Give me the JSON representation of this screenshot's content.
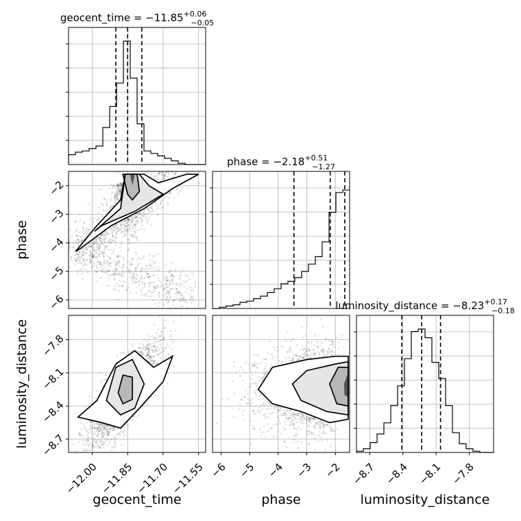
{
  "chart_data": {
    "type": "corner",
    "parameters": [
      {
        "name": "geocent_time",
        "range": [
          -12.1,
          -11.52
        ],
        "ticks": [
          -12.0,
          -11.85,
          -11.7,
          -11.55
        ],
        "tick_labels": [
          "−12.00",
          "−11.85",
          "−11.70",
          "−11.55"
        ],
        "median": -11.85,
        "q16": -11.9,
        "q84": -11.79,
        "title_main": "geocent_time = −11.85",
        "title_sup": "+0.06",
        "title_sub": "−0.05"
      },
      {
        "name": "phase",
        "range": [
          -6.3,
          -1.5
        ],
        "ticks": [
          -6,
          -5,
          -4,
          -3,
          -2
        ],
        "tick_labels": [
          "−6",
          "−5",
          "−4",
          "−3",
          "−2"
        ],
        "median": -2.18,
        "q16": -3.45,
        "q84": -1.67,
        "title_main": "phase = −2.18",
        "title_sup": "+0.51",
        "title_sub": "−1.27"
      },
      {
        "name": "luminosity_distance",
        "range": [
          -8.82,
          -7.58
        ],
        "ticks": [
          -8.7,
          -8.4,
          -8.1,
          -7.8
        ],
        "tick_labels": [
          "−8.7",
          "−8.4",
          "−8.1",
          "−7.8"
        ],
        "median": -8.23,
        "q16": -8.41,
        "q84": -8.06,
        "title_main": "luminosity_distance = −8.23",
        "title_sup": "+0.17",
        "title_sub": "−0.18"
      }
    ],
    "histograms": [
      {
        "param": "geocent_time",
        "bin_edges_start": -12.1,
        "bin_width": 0.029,
        "counts": [
          0.08,
          0.1,
          0.11,
          0.13,
          0.15,
          0.3,
          0.47,
          0.66,
          1.0,
          0.7,
          0.33,
          0.11,
          0.09,
          0.07,
          0.05,
          0.03,
          0.01,
          0.0,
          0.0,
          0.0
        ]
      },
      {
        "param": "phase",
        "bin_edges_start": -6.3,
        "bin_width": 0.24,
        "counts": [
          0.0,
          0.01,
          0.02,
          0.03,
          0.05,
          0.06,
          0.08,
          0.1,
          0.13,
          0.16,
          0.2,
          0.22,
          0.25,
          0.3,
          0.36,
          0.42,
          0.54,
          0.78,
          0.94,
          0.96
        ]
      },
      {
        "param": "luminosity_distance",
        "bin_edges_start": -8.82,
        "bin_width": 0.062,
        "counts": [
          0.01,
          0.03,
          0.08,
          0.15,
          0.24,
          0.38,
          0.54,
          0.76,
          0.98,
          1.0,
          0.93,
          0.73,
          0.6,
          0.38,
          0.16,
          0.07,
          0.03,
          0.01,
          0.0,
          0.0
        ]
      }
    ],
    "pair_panels": [
      {
        "x": "geocent_time",
        "y": "phase",
        "center": [
          -11.84,
          -2.2
        ],
        "trend": "positive",
        "note": "scatter of posterior samples with 2D density contours"
      },
      {
        "x": "geocent_time",
        "y": "luminosity_distance",
        "center": [
          -11.86,
          -8.27
        ],
        "trend": "positive"
      },
      {
        "x": "phase",
        "y": "luminosity_distance",
        "center": [
          -1.75,
          -8.25
        ],
        "trend": "flat"
      }
    ],
    "grid": true,
    "colors": {
      "density": "#000000",
      "grid": "#b0b0b0"
    }
  }
}
